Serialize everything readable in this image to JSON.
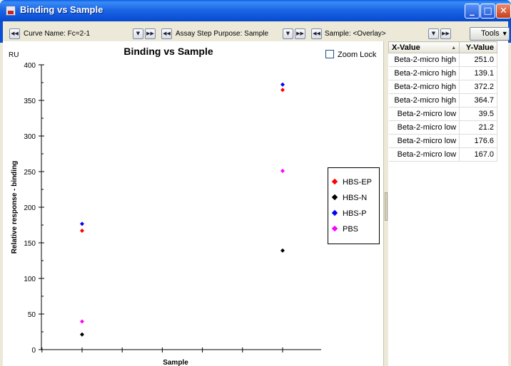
{
  "window": {
    "title": "Binding vs Sample",
    "minimize": "_",
    "maximize": "□",
    "close": "✕"
  },
  "toolbar": {
    "curve_label": "Curve Name: Fc=2-1",
    "assay_label": "Assay Step Purpose: Sample",
    "sample_label": "Sample: <Overlay>",
    "tools_label": "Tools",
    "tools_arrow": "▼",
    "prev_glyph": "◀◀",
    "filter_glyph": "▼",
    "next_glyph": "▶▶"
  },
  "chart_data": {
    "type": "scatter",
    "title": "Binding vs Sample",
    "unit_label": "RU",
    "xlabel": "Sample",
    "ylabel": "Relative response - binding",
    "ylim": [
      0,
      400
    ],
    "y_ticks": [
      0,
      50,
      100,
      150,
      200,
      250,
      300,
      350,
      400
    ],
    "categories": [
      "Beta-2-micro low",
      "Beta-2-micro high"
    ],
    "legend_position": "right",
    "series": [
      {
        "name": "HBS-EP",
        "color": "#ff0000",
        "values": [
          167.0,
          364.7
        ]
      },
      {
        "name": "HBS-N",
        "color": "#000000",
        "values": [
          21.2,
          139.1
        ]
      },
      {
        "name": "HBS-P",
        "color": "#0000ff",
        "values": [
          176.6,
          372.2
        ]
      },
      {
        "name": "PBS",
        "color": "#ff00ff",
        "values": [
          39.5,
          251.0
        ]
      }
    ]
  },
  "zoom_lock": {
    "label": "Zoom Lock",
    "checked": false
  },
  "table": {
    "headers": {
      "x": "X-Value",
      "y": "Y-Value",
      "sort": "▲"
    },
    "rows": [
      {
        "x": "Beta-2-micro high",
        "y": "251.0"
      },
      {
        "x": "Beta-2-micro high",
        "y": "139.1"
      },
      {
        "x": "Beta-2-micro high",
        "y": "372.2"
      },
      {
        "x": "Beta-2-micro high",
        "y": "364.7"
      },
      {
        "x": "Beta-2-micro low",
        "y": "39.5"
      },
      {
        "x": "Beta-2-micro low",
        "y": "21.2"
      },
      {
        "x": "Beta-2-micro low",
        "y": "176.6"
      },
      {
        "x": "Beta-2-micro low",
        "y": "167.0"
      }
    ]
  }
}
